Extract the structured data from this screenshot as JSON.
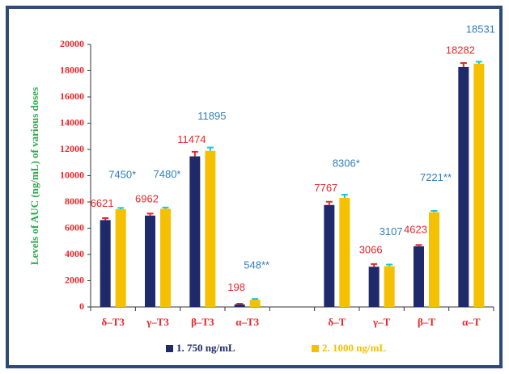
{
  "chart_data": {
    "type": "bar",
    "y_label": "Levels of AUC (ng/mL) of various doses",
    "categories": [
      "δ–T3",
      "γ–T3",
      "β–T3",
      "α–T3",
      null,
      "δ–T",
      "γ–T",
      "β–T",
      "α–T"
    ],
    "series": [
      {
        "name": "1. 750 ng/mL",
        "color": "#1f2a6b",
        "label_color": "#e8262a",
        "error_color": "#e8262a",
        "values": [
          6621,
          6962,
          11474,
          198,
          null,
          7767,
          3066,
          4623,
          18282
        ],
        "errors": [
          150,
          150,
          350,
          50,
          null,
          250,
          200,
          100,
          300
        ]
      },
      {
        "name": "2. 1000 ng/mL",
        "color": "#f5c000",
        "label_color": "#2f7ec2",
        "error_color": "#17c6d6",
        "values": [
          7450,
          7480,
          11895,
          548,
          null,
          8306,
          3107,
          7221,
          18531
        ],
        "value_labels": [
          "7450*",
          "7480*",
          "11895",
          "548**",
          null,
          "8306*",
          "3107",
          "7221**",
          "18531"
        ],
        "errors": [
          100,
          100,
          250,
          60,
          null,
          250,
          120,
          100,
          150
        ]
      }
    ],
    "ylim": [
      0,
      20000
    ],
    "yticks": [
      0,
      2000,
      4000,
      6000,
      8000,
      10000,
      12000,
      14000,
      16000,
      18000,
      20000
    ]
  }
}
